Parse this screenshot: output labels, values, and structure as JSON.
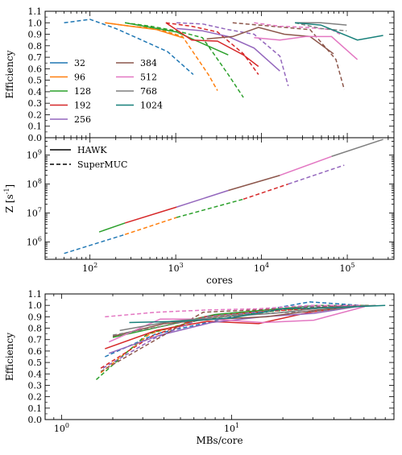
{
  "figure": {
    "colors": {
      "32": "#1f77b4",
      "96": "#ff7f0e",
      "128": "#2ca02c",
      "192": "#d62728",
      "256": "#9467bd",
      "384": "#8c564b",
      "512": "#e377c2",
      "768": "#7f7f7f",
      "1024": "#17807a"
    }
  },
  "chart_data": [
    {
      "type": "line",
      "ylabel": "Efficiency",
      "xscale": "log",
      "xlim": [
        30,
        350000
      ],
      "ylim": [
        0,
        1.1
      ],
      "yticks": [
        "0.0",
        "0.1",
        "0.2",
        "0.3",
        "0.4",
        "0.5",
        "0.6",
        "0.7",
        "0.8",
        "0.9",
        "1.0",
        "1.1"
      ],
      "legend": {
        "placement": "lower-left",
        "entries": [
          "32",
          "96",
          "128",
          "192",
          "256",
          "384",
          "512",
          "768",
          "1024"
        ]
      },
      "series": [
        {
          "name": "32",
          "machine": "HAWK",
          "x": [],
          "y": []
        },
        {
          "name": "32",
          "machine": "SuperMUC",
          "x": [
            50,
            100,
            200,
            400,
            800,
            1600
          ],
          "y": [
            1.0,
            1.03,
            0.95,
            0.85,
            0.75,
            0.55
          ]
        },
        {
          "name": "96",
          "machine": "HAWK",
          "x": [
            150,
            300,
            600,
            1200
          ],
          "y": [
            1.0,
            0.97,
            0.94,
            0.87
          ]
        },
        {
          "name": "96",
          "machine": "SuperMUC",
          "x": [
            150,
            300,
            600,
            1200,
            2400,
            3072
          ],
          "y": [
            1.0,
            0.97,
            0.95,
            0.88,
            0.55,
            0.41
          ]
        },
        {
          "name": "128",
          "machine": "HAWK",
          "x": [
            256,
            512,
            1024,
            2048,
            4096
          ],
          "y": [
            1.0,
            0.96,
            0.92,
            0.82,
            0.72
          ]
        },
        {
          "name": "128",
          "machine": "SuperMUC",
          "x": [
            256,
            512,
            1024,
            2048,
            4096,
            6144
          ],
          "y": [
            1.0,
            0.97,
            0.93,
            0.87,
            0.55,
            0.35
          ]
        },
        {
          "name": "192",
          "machine": "HAWK",
          "x": [
            768,
            1536,
            3072,
            6144,
            9216
          ],
          "y": [
            1.0,
            0.85,
            0.84,
            0.72,
            0.62
          ]
        },
        {
          "name": "192",
          "machine": "SuperMUC",
          "x": [
            768,
            1536,
            3072,
            6144,
            9216
          ],
          "y": [
            1.0,
            0.97,
            0.92,
            0.73,
            0.55
          ]
        },
        {
          "name": "256",
          "machine": "HAWK",
          "x": [
            1024,
            2048,
            4096,
            8192,
            16384
          ],
          "y": [
            0.95,
            0.93,
            0.88,
            0.78,
            0.58
          ]
        },
        {
          "name": "256",
          "machine": "SuperMUC",
          "x": [
            1024,
            2048,
            4096,
            8192,
            16384,
            20480
          ],
          "y": [
            1.0,
            0.99,
            0.94,
            0.9,
            0.71,
            0.45
          ]
        },
        {
          "name": "384",
          "machine": "HAWK",
          "x": [
            2304,
            4608,
            9216,
            18432,
            36864,
            69120
          ],
          "y": [
            0.86,
            0.88,
            0.96,
            0.9,
            0.88,
            0.73
          ]
        },
        {
          "name": "384",
          "machine": "SuperMUC",
          "x": [
            4608,
            9216,
            18432,
            36864,
            73728,
            92160
          ],
          "y": [
            1.0,
            0.98,
            0.96,
            0.94,
            0.68,
            0.42
          ]
        },
        {
          "name": "512",
          "machine": "HAWK",
          "x": [
            8192,
            16384,
            32768,
            65536,
            131072
          ],
          "y": [
            0.87,
            0.85,
            0.88,
            0.88,
            0.68
          ]
        },
        {
          "name": "512",
          "machine": "SuperMUC",
          "x": [
            8192,
            16384,
            32768,
            65536,
            81920
          ],
          "y": [
            1.0,
            0.97,
            0.96,
            0.94,
            0.9
          ]
        },
        {
          "name": "768",
          "machine": "HAWK",
          "x": [
            24576,
            49152,
            98304
          ],
          "y": [
            1.0,
            1.0,
            0.98
          ]
        },
        {
          "name": "768",
          "machine": "SuperMUC",
          "x": [
            24576,
            49152,
            98304
          ],
          "y": [
            1.0,
            0.95,
            0.93
          ]
        },
        {
          "name": "1024",
          "machine": "HAWK",
          "x": [
            24576,
            49152,
            131072,
            262144
          ],
          "y": [
            1.0,
            0.98,
            0.85,
            0.89
          ]
        }
      ]
    },
    {
      "type": "line",
      "ylabel": "Z [s^-1]",
      "xlabel": "cores",
      "xscale": "log",
      "yscale": "log",
      "xlim": [
        30,
        350000
      ],
      "ylim": [
        250000,
        4000000000
      ],
      "xticks": [
        "10^2",
        "10^3",
        "10^4",
        "10^5"
      ],
      "yticks": [
        "10^6",
        "10^7",
        "10^8",
        "10^9"
      ],
      "legend": {
        "placement": "top-left",
        "entries": [
          "HAWK",
          "SuperMUC"
        ]
      },
      "series": [
        {
          "name": "HAWK",
          "x": [
            128,
            256,
            1024,
            4096,
            16384,
            65536,
            262144
          ],
          "y": [
            2200000,
            4500000,
            16000000,
            60000000,
            200000000,
            900000000,
            3500000000
          ]
        },
        {
          "name": "SuperMUC",
          "x": [
            50,
            256,
            1024,
            6144,
            20480,
            92160
          ],
          "y": [
            400000,
            1800000,
            7000000,
            30000000,
            100000000,
            450000000
          ]
        }
      ]
    },
    {
      "type": "line",
      "ylabel": "Efficiency",
      "xlabel": "MBs/core",
      "xscale": "log",
      "xlim": [
        0.8,
        90
      ],
      "ylim": [
        0,
        1.1
      ],
      "xticks": [
        "10^0",
        "10^1"
      ],
      "yticks": [
        "0.0",
        "0.1",
        "0.2",
        "0.3",
        "0.4",
        "0.5",
        "0.6",
        "0.7",
        "0.8",
        "0.9",
        "1.0",
        "1.1"
      ],
      "series": [
        {
          "name": "32",
          "machine": "SuperMUC",
          "x": [
            1.8,
            3.6,
            7.2,
            14.4,
            28.8,
            57.6
          ],
          "y": [
            0.55,
            0.75,
            0.85,
            0.95,
            1.03,
            1.0
          ]
        },
        {
          "name": "96",
          "machine": "SuperMUC",
          "x": [
            1.7,
            3.3,
            6.6,
            13.2,
            26.4,
            52.8
          ],
          "y": [
            0.41,
            0.75,
            0.88,
            0.95,
            0.97,
            1.0
          ]
        },
        {
          "name": "128",
          "machine": "HAWK",
          "x": [
            2.0,
            4.0,
            8.0,
            16.0,
            32.0,
            64.0
          ],
          "y": [
            0.72,
            0.82,
            0.92,
            0.96,
            1.0,
            1.0
          ]
        },
        {
          "name": "128",
          "machine": "SuperMUC",
          "x": [
            1.6,
            3.2,
            6.4,
            12.8,
            25.6,
            51.2
          ],
          "y": [
            0.35,
            0.75,
            0.87,
            0.93,
            0.97,
            1.0
          ]
        },
        {
          "name": "192",
          "machine": "HAWK",
          "x": [
            1.8,
            3.6,
            7.2,
            14.4,
            28.8,
            57.6
          ],
          "y": [
            0.62,
            0.78,
            0.86,
            0.84,
            0.94,
            1.0
          ]
        },
        {
          "name": "192",
          "machine": "SuperMUC",
          "x": [
            1.7,
            3.4,
            6.8,
            13.6,
            27.2,
            54.4
          ],
          "y": [
            0.45,
            0.73,
            0.9,
            0.94,
            0.97,
            1.0
          ]
        },
        {
          "name": "256",
          "machine": "HAWK",
          "x": [
            1.9,
            3.8,
            7.6,
            15.2,
            30.4,
            60.8
          ],
          "y": [
            0.58,
            0.74,
            0.85,
            0.9,
            0.93,
            1.0
          ]
        },
        {
          "name": "256",
          "machine": "SuperMUC",
          "x": [
            1.75,
            3.5,
            7.0,
            14.0,
            28.0,
            56.0
          ],
          "y": [
            0.45,
            0.71,
            0.9,
            0.94,
            0.99,
            1.0
          ]
        },
        {
          "name": "384",
          "machine": "HAWK",
          "x": [
            2.0,
            4.0,
            8.0,
            16.0,
            32.0,
            64.0
          ],
          "y": [
            0.73,
            0.84,
            0.88,
            0.9,
            0.96,
            1.0
          ]
        },
        {
          "name": "384",
          "machine": "SuperMUC",
          "x": [
            1.7,
            3.4,
            6.8,
            13.6,
            27.2,
            54.4
          ],
          "y": [
            0.42,
            0.68,
            0.94,
            0.96,
            0.98,
            1.0
          ]
        },
        {
          "name": "512",
          "machine": "HAWK",
          "x": [
            1.9,
            3.8,
            7.6,
            15.2,
            30.4,
            60.8
          ],
          "y": [
            0.68,
            0.88,
            0.88,
            0.85,
            0.87,
            0.99
          ]
        },
        {
          "name": "512",
          "machine": "SuperMUC",
          "x": [
            1.8,
            3.6,
            7.2,
            14.4,
            28.8,
            57.6
          ],
          "y": [
            0.9,
            0.94,
            0.96,
            0.97,
            1.0,
            1.0
          ]
        },
        {
          "name": "768",
          "machine": "HAWK",
          "x": [
            2.2,
            4.4,
            8.8,
            17.6,
            35.2,
            70.4
          ],
          "y": [
            0.78,
            0.86,
            0.9,
            0.93,
            0.98,
            1.0
          ]
        },
        {
          "name": "768",
          "machine": "SuperMUC",
          "x": [
            2.0,
            4.0,
            8.0,
            16.0,
            32.0,
            64.0
          ],
          "y": [
            0.74,
            0.82,
            0.91,
            0.93,
            0.95,
            1.0
          ]
        },
        {
          "name": "1024",
          "machine": "HAWK",
          "x": [
            2.5,
            5.0,
            10.0,
            20.0,
            40.0,
            80.0
          ],
          "y": [
            0.85,
            0.86,
            0.89,
            0.97,
            0.98,
            1.0
          ]
        }
      ]
    }
  ]
}
